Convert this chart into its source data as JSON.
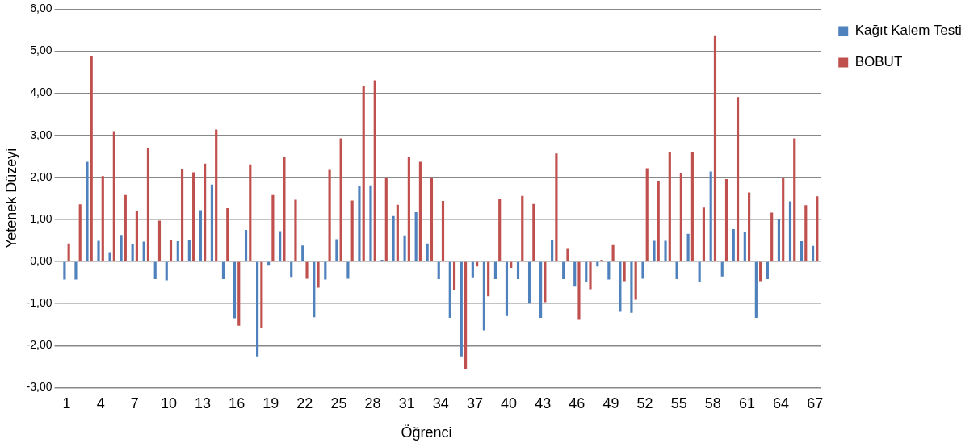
{
  "chart_data": {
    "type": "bar",
    "xlabel": "Öğrenci",
    "ylabel": "Yetenek Düzeyi",
    "categories": [
      "1",
      null,
      null,
      "4",
      null,
      null,
      "7",
      null,
      null,
      "10",
      null,
      null,
      "13",
      null,
      null,
      "16",
      null,
      null,
      "19",
      null,
      null,
      "22",
      null,
      null,
      "25",
      null,
      null,
      "28",
      null,
      null,
      "31",
      null,
      null,
      "34",
      null,
      null,
      "37",
      null,
      null,
      "40",
      null,
      null,
      "43",
      null,
      null,
      "46",
      null,
      null,
      "49",
      null,
      null,
      "52",
      null,
      null,
      "55",
      null,
      null,
      "58",
      null,
      null,
      "61",
      null,
      null,
      "64",
      null,
      null,
      "67"
    ],
    "series": [
      {
        "name": "Kağıt Kalem Testi",
        "color": "#4f81bd",
        "values": [
          -0.43,
          -0.43,
          2.37,
          0.49,
          0.22,
          0.63,
          0.41,
          0.47,
          -0.42,
          -0.45,
          0.48,
          0.5,
          1.22,
          1.83,
          -0.42,
          -1.35,
          0.75,
          -2.26,
          -0.1,
          0.72,
          -0.37,
          0.38,
          -1.33,
          -0.43,
          0.53,
          -0.41,
          1.8,
          1.81,
          0.04,
          1.08,
          0.62,
          1.17,
          0.43,
          -0.42,
          -1.34,
          -2.26,
          -0.38,
          -1.64,
          -0.42,
          -1.3,
          -0.42,
          -1.0,
          -1.34,
          0.5,
          -0.42,
          -0.6,
          -0.49,
          -0.12,
          -0.43,
          -1.2,
          -1.22,
          -0.41,
          0.49,
          0.49,
          -0.42,
          0.66,
          -0.5,
          2.14,
          -0.36,
          0.77,
          0.7,
          -1.34,
          -0.42,
          1.0,
          1.43,
          0.48,
          0.37
        ]
      },
      {
        "name": "BOBUT",
        "color": "#c0504d",
        "values": [
          0.43,
          1.36,
          4.88,
          2.03,
          3.1,
          1.58,
          1.21,
          2.7,
          0.97,
          0.51,
          2.19,
          2.12,
          2.33,
          3.14,
          1.27,
          -1.53,
          2.31,
          -1.59,
          1.58,
          2.48,
          1.47,
          -0.41,
          -0.62,
          2.18,
          2.93,
          1.45,
          4.17,
          4.31,
          1.98,
          1.35,
          2.49,
          2.37,
          2.0,
          1.44,
          -0.67,
          -2.55,
          -0.12,
          -0.83,
          1.48,
          -0.15,
          1.56,
          1.37,
          -0.97,
          2.57,
          0.32,
          -1.37,
          -0.66,
          0.04,
          0.39,
          -0.47,
          -0.91,
          2.22,
          1.92,
          2.6,
          2.1,
          2.59,
          1.28,
          5.38,
          1.96,
          3.91,
          1.64,
          -0.47,
          1.16,
          1.99,
          2.93,
          1.34,
          1.55
        ]
      }
    ],
    "ylim": [
      -3,
      6
    ],
    "yticks": [
      {
        "value": -3,
        "label": "-3,00"
      },
      {
        "value": -2,
        "label": "-2,00"
      },
      {
        "value": -1,
        "label": "-1,00"
      },
      {
        "value": 0,
        "label": "0,00"
      },
      {
        "value": 1,
        "label": "1,00"
      },
      {
        "value": 2,
        "label": "2,00"
      },
      {
        "value": 3,
        "label": "3,00"
      },
      {
        "value": 4,
        "label": "4,00"
      },
      {
        "value": 5,
        "label": "5,00"
      },
      {
        "value": 6,
        "label": "6,00"
      }
    ],
    "grid": "y",
    "legend": "right"
  }
}
